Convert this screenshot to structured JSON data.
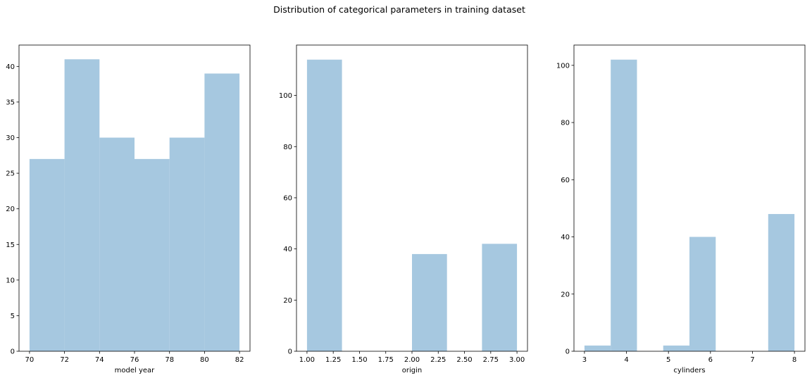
{
  "figure": {
    "title": "Distribution of categorical parameters in training dataset"
  },
  "chart_data": [
    {
      "type": "histogram",
      "xlabel": "model year",
      "ylabel": "",
      "xlim": [
        69.4,
        82.6
      ],
      "ylim": [
        0,
        43
      ],
      "bar_color": "#a6c8e0",
      "bins": [
        {
          "x0": 70,
          "x1": 72,
          "value": 27
        },
        {
          "x0": 72,
          "x1": 74,
          "value": 41
        },
        {
          "x0": 74,
          "x1": 76,
          "value": 30
        },
        {
          "x0": 76,
          "x1": 78,
          "value": 27
        },
        {
          "x0": 78,
          "x1": 80,
          "value": 30
        },
        {
          "x0": 80,
          "x1": 82,
          "value": 39
        }
      ],
      "xticks": [
        70,
        72,
        74,
        76,
        78,
        80,
        82
      ],
      "xtick_labels": [
        "70",
        "72",
        "74",
        "76",
        "78",
        "80",
        "82"
      ],
      "yticks": [
        0,
        5,
        10,
        15,
        20,
        25,
        30,
        35,
        40
      ],
      "ytick_labels": [
        "0",
        "5",
        "10",
        "15",
        "20",
        "25",
        "30",
        "35",
        "40"
      ],
      "grid": false
    },
    {
      "type": "histogram",
      "xlabel": "origin",
      "ylabel": "",
      "xlim": [
        0.9,
        3.1
      ],
      "ylim": [
        0,
        119.7
      ],
      "bar_color": "#a6c8e0",
      "bins": [
        {
          "x0": 1.0,
          "x1": 1.3333,
          "value": 114
        },
        {
          "x0": 1.3333,
          "x1": 1.6667,
          "value": 0
        },
        {
          "x0": 1.6667,
          "x1": 2.0,
          "value": 0
        },
        {
          "x0": 2.0,
          "x1": 2.3333,
          "value": 38
        },
        {
          "x0": 2.3333,
          "x1": 2.6667,
          "value": 0
        },
        {
          "x0": 2.6667,
          "x1": 3.0,
          "value": 42
        }
      ],
      "xticks": [
        1.0,
        1.25,
        1.5,
        1.75,
        2.0,
        2.25,
        2.5,
        2.75,
        3.0
      ],
      "xtick_labels": [
        "1.00",
        "1.25",
        "1.50",
        "1.75",
        "2.00",
        "2.25",
        "2.50",
        "2.75",
        "3.00"
      ],
      "yticks": [
        0,
        20,
        40,
        60,
        80,
        100
      ],
      "ytick_labels": [
        "0",
        "20",
        "40",
        "60",
        "80",
        "100"
      ],
      "grid": false
    },
    {
      "type": "histogram",
      "xlabel": "cylinders",
      "ylabel": "",
      "xlim": [
        2.75,
        8.25
      ],
      "ylim": [
        0,
        107.1
      ],
      "bar_color": "#a6c8e0",
      "bins": [
        {
          "x0": 3.0,
          "x1": 3.625,
          "value": 2
        },
        {
          "x0": 3.625,
          "x1": 4.25,
          "value": 102
        },
        {
          "x0": 4.25,
          "x1": 4.875,
          "value": 0
        },
        {
          "x0": 4.875,
          "x1": 5.5,
          "value": 2
        },
        {
          "x0": 5.5,
          "x1": 6.125,
          "value": 40
        },
        {
          "x0": 6.125,
          "x1": 6.75,
          "value": 0
        },
        {
          "x0": 6.75,
          "x1": 7.375,
          "value": 0
        },
        {
          "x0": 7.375,
          "x1": 8.0,
          "value": 48
        }
      ],
      "xticks": [
        3,
        4,
        5,
        6,
        7,
        8
      ],
      "xtick_labels": [
        "3",
        "4",
        "5",
        "6",
        "7",
        "8"
      ],
      "yticks": [
        0,
        20,
        40,
        60,
        80,
        100
      ],
      "ytick_labels": [
        "0",
        "20",
        "40",
        "60",
        "80",
        "100"
      ],
      "grid": false
    }
  ]
}
